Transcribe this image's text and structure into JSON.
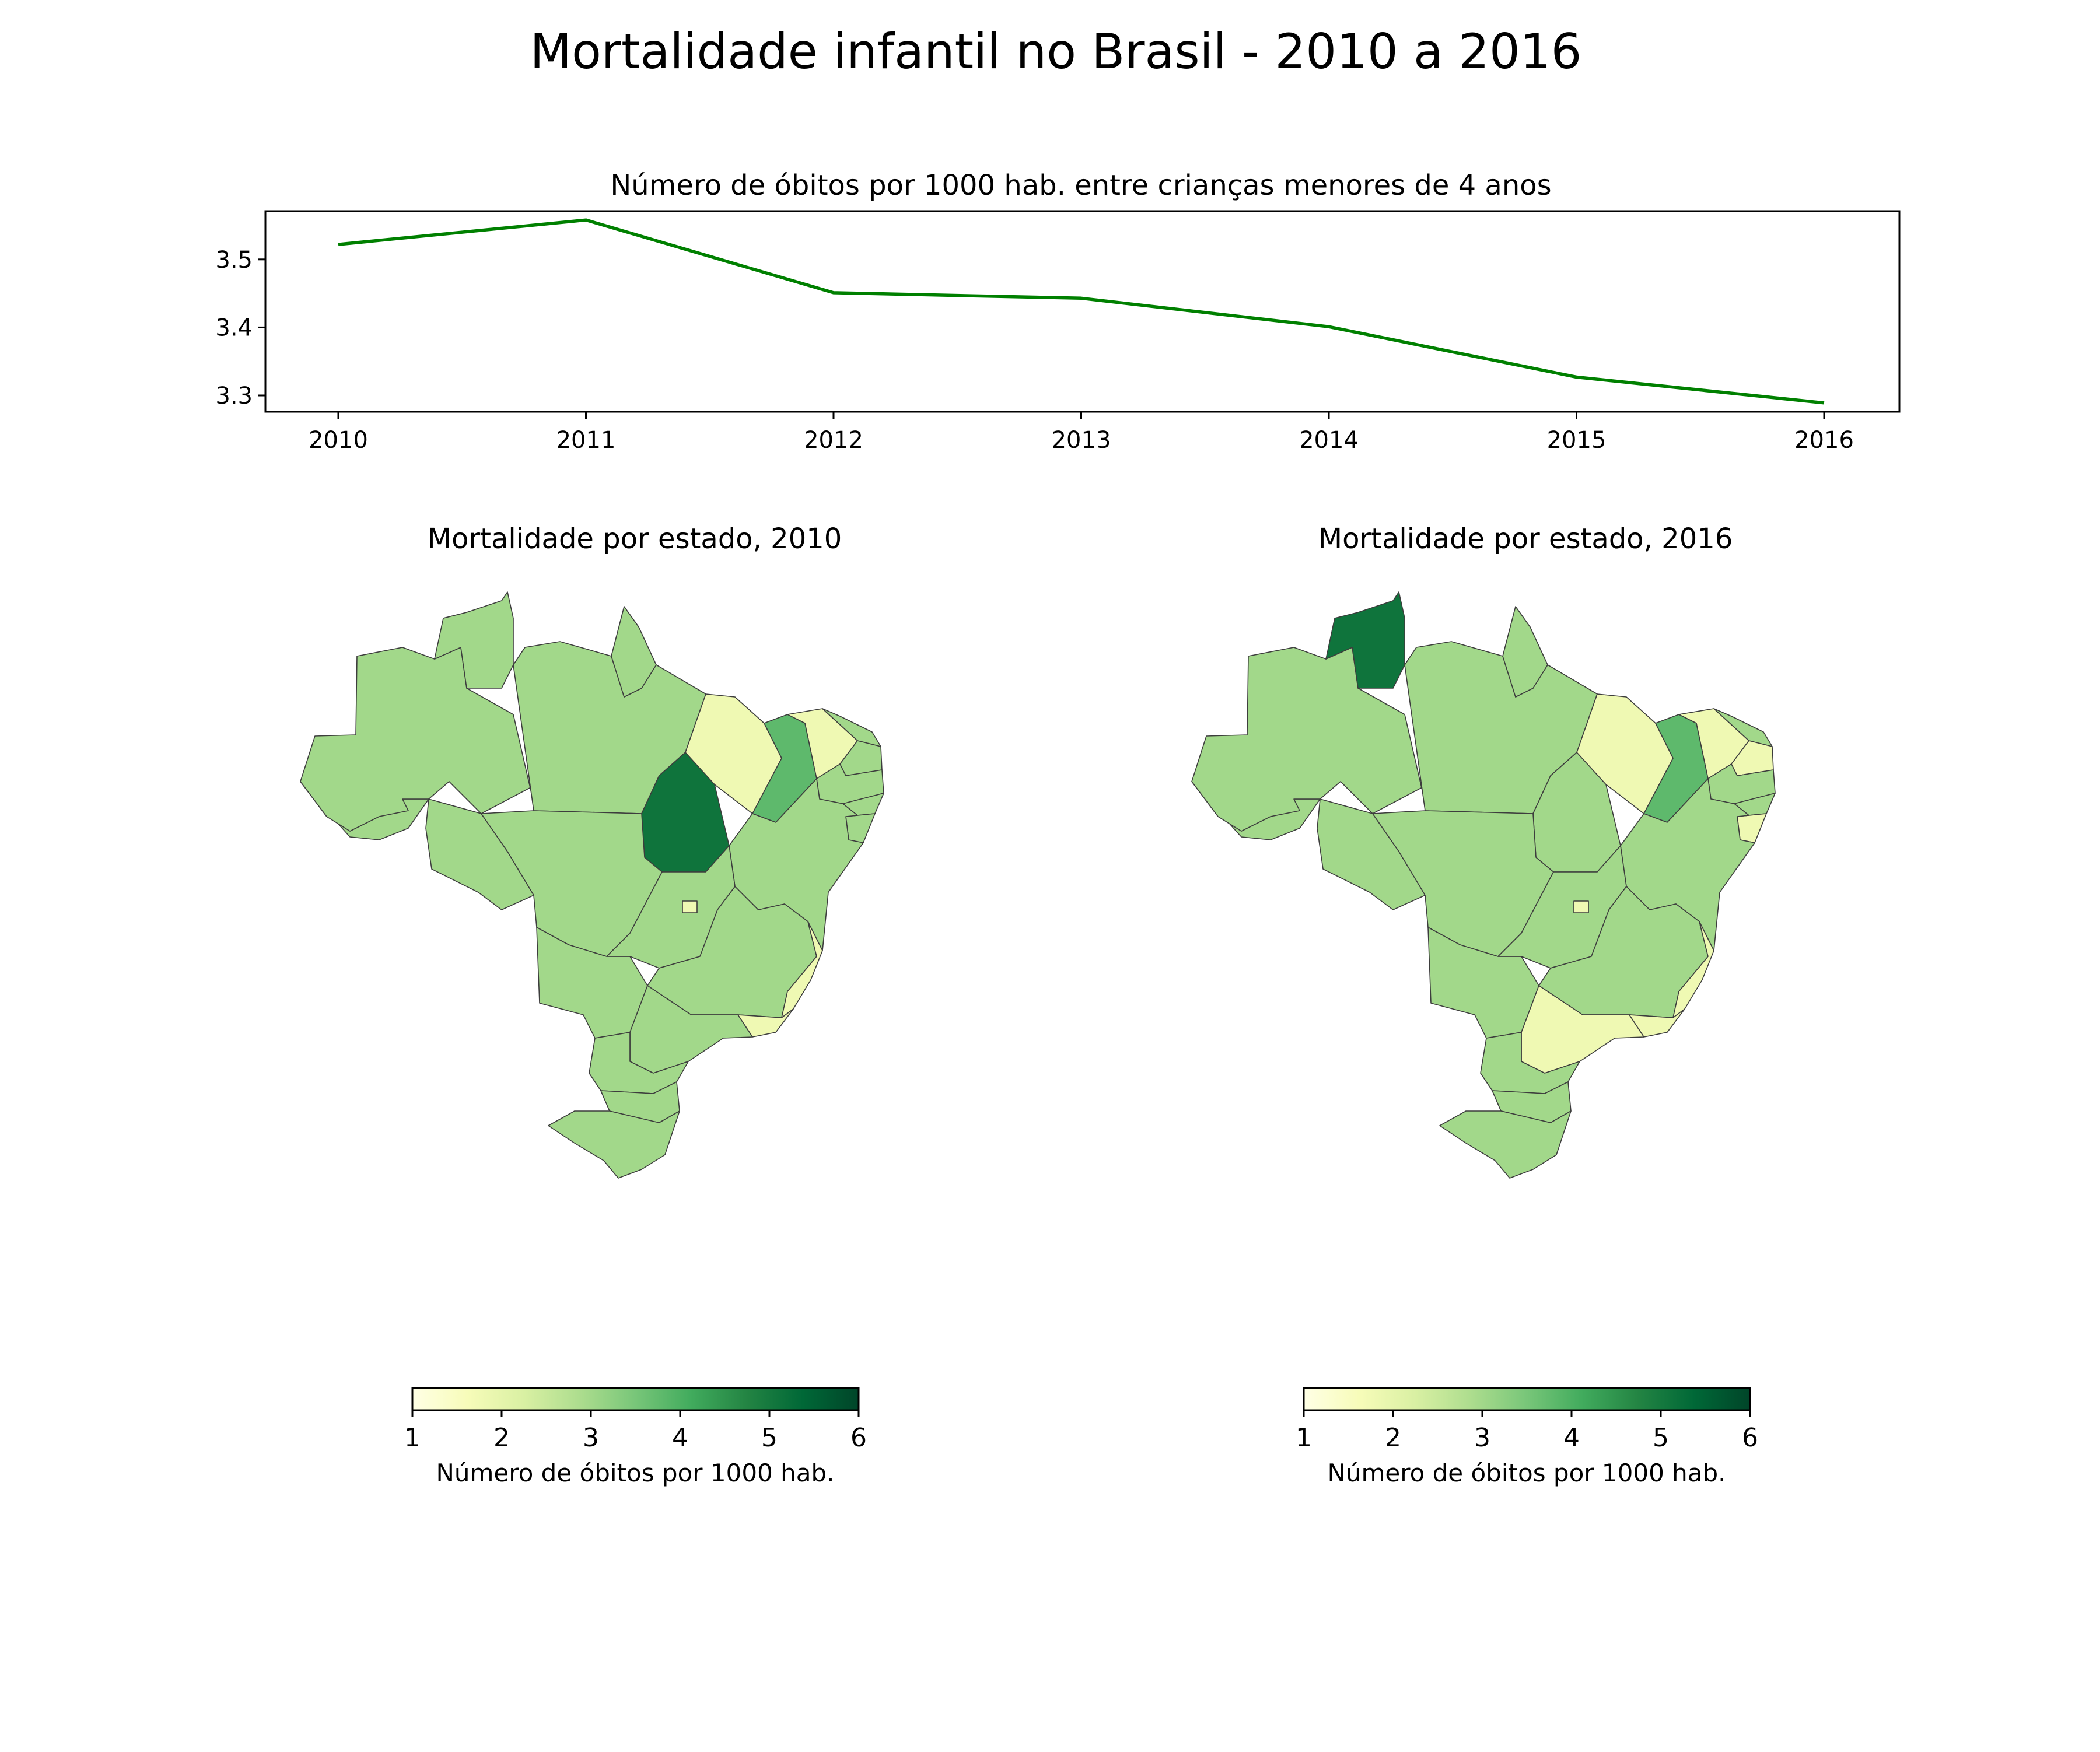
{
  "figure": {
    "suptitle": "Mortalidade infantil no Brasil - 2010 a 2016"
  },
  "chart_data": [
    {
      "type": "line",
      "title": "Número de óbitos por 1000 hab. entre crianças menores de 4 anos",
      "xlabel": "",
      "ylabel": "",
      "x": [
        "2010",
        "2011",
        "2012",
        "2013",
        "2014",
        "2015",
        "2016"
      ],
      "series": [
        {
          "values": [
            3.522,
            3.558,
            3.451,
            3.443,
            3.401,
            3.327,
            3.289
          ],
          "color": "#008000"
        }
      ],
      "yticks": [
        "3.3",
        "3.4",
        "3.5"
      ],
      "ylim": [
        3.276,
        3.571
      ],
      "grid": false
    },
    {
      "type": "choropleth",
      "title": "Mortalidade por estado, 2010",
      "colorbar": {
        "ticks": [
          "1",
          "2",
          "3",
          "4",
          "5",
          "6"
        ],
        "range": [
          1,
          6
        ],
        "label": "Número de óbitos por 1000 hab.",
        "colormap": "YlGn"
      },
      "regions": [
        {
          "state": "AC",
          "value": 3.0
        },
        {
          "state": "AM",
          "value": 3.0
        },
        {
          "state": "RR",
          "value": 3.0
        },
        {
          "state": "PA",
          "value": 3.0
        },
        {
          "state": "AP",
          "value": 3.0
        },
        {
          "state": "TO",
          "value": 5.1
        },
        {
          "state": "MA",
          "value": 1.8
        },
        {
          "state": "PI",
          "value": 3.8
        },
        {
          "state": "CE",
          "value": 1.8
        },
        {
          "state": "RN",
          "value": 3.0
        },
        {
          "state": "PB",
          "value": 3.0
        },
        {
          "state": "PE",
          "value": 3.0
        },
        {
          "state": "AL",
          "value": 3.0
        },
        {
          "state": "SE",
          "value": 3.0
        },
        {
          "state": "BA",
          "value": 3.0
        },
        {
          "state": "RO",
          "value": 3.0
        },
        {
          "state": "MT",
          "value": 3.0
        },
        {
          "state": "MS",
          "value": 3.0
        },
        {
          "state": "GO",
          "value": 3.0
        },
        {
          "state": "DF",
          "value": 1.8
        },
        {
          "state": "MG",
          "value": 3.0
        },
        {
          "state": "ES",
          "value": 1.8
        },
        {
          "state": "RJ",
          "value": 1.8
        },
        {
          "state": "SP",
          "value": 3.0
        },
        {
          "state": "PR",
          "value": 3.0
        },
        {
          "state": "SC",
          "value": 3.0
        },
        {
          "state": "RS",
          "value": 3.0
        }
      ]
    },
    {
      "type": "choropleth",
      "title": "Mortalidade por estado, 2016",
      "colorbar": {
        "ticks": [
          "1",
          "2",
          "3",
          "4",
          "5",
          "6"
        ],
        "range": [
          1,
          6
        ],
        "label": "Número de óbitos por 1000 hab.",
        "colormap": "YlGn"
      },
      "regions": [
        {
          "state": "AC",
          "value": 3.0
        },
        {
          "state": "AM",
          "value": 3.0
        },
        {
          "state": "RR",
          "value": 5.1
        },
        {
          "state": "PA",
          "value": 3.0
        },
        {
          "state": "AP",
          "value": 3.0
        },
        {
          "state": "TO",
          "value": 3.0
        },
        {
          "state": "MA",
          "value": 1.8
        },
        {
          "state": "PI",
          "value": 3.8
        },
        {
          "state": "CE",
          "value": 1.8
        },
        {
          "state": "RN",
          "value": 3.0
        },
        {
          "state": "PB",
          "value": 1.8
        },
        {
          "state": "PE",
          "value": 3.0
        },
        {
          "state": "AL",
          "value": 3.0
        },
        {
          "state": "SE",
          "value": 1.8
        },
        {
          "state": "BA",
          "value": 3.0
        },
        {
          "state": "RO",
          "value": 3.0
        },
        {
          "state": "MT",
          "value": 3.0
        },
        {
          "state": "MS",
          "value": 3.0
        },
        {
          "state": "GO",
          "value": 3.0
        },
        {
          "state": "DF",
          "value": 1.8
        },
        {
          "state": "MG",
          "value": 3.0
        },
        {
          "state": "ES",
          "value": 1.8
        },
        {
          "state": "RJ",
          "value": 1.8
        },
        {
          "state": "SP",
          "value": 1.8
        },
        {
          "state": "PR",
          "value": 3.0
        },
        {
          "state": "SC",
          "value": 3.0
        },
        {
          "state": "RS",
          "value": 3.0
        }
      ]
    }
  ]
}
